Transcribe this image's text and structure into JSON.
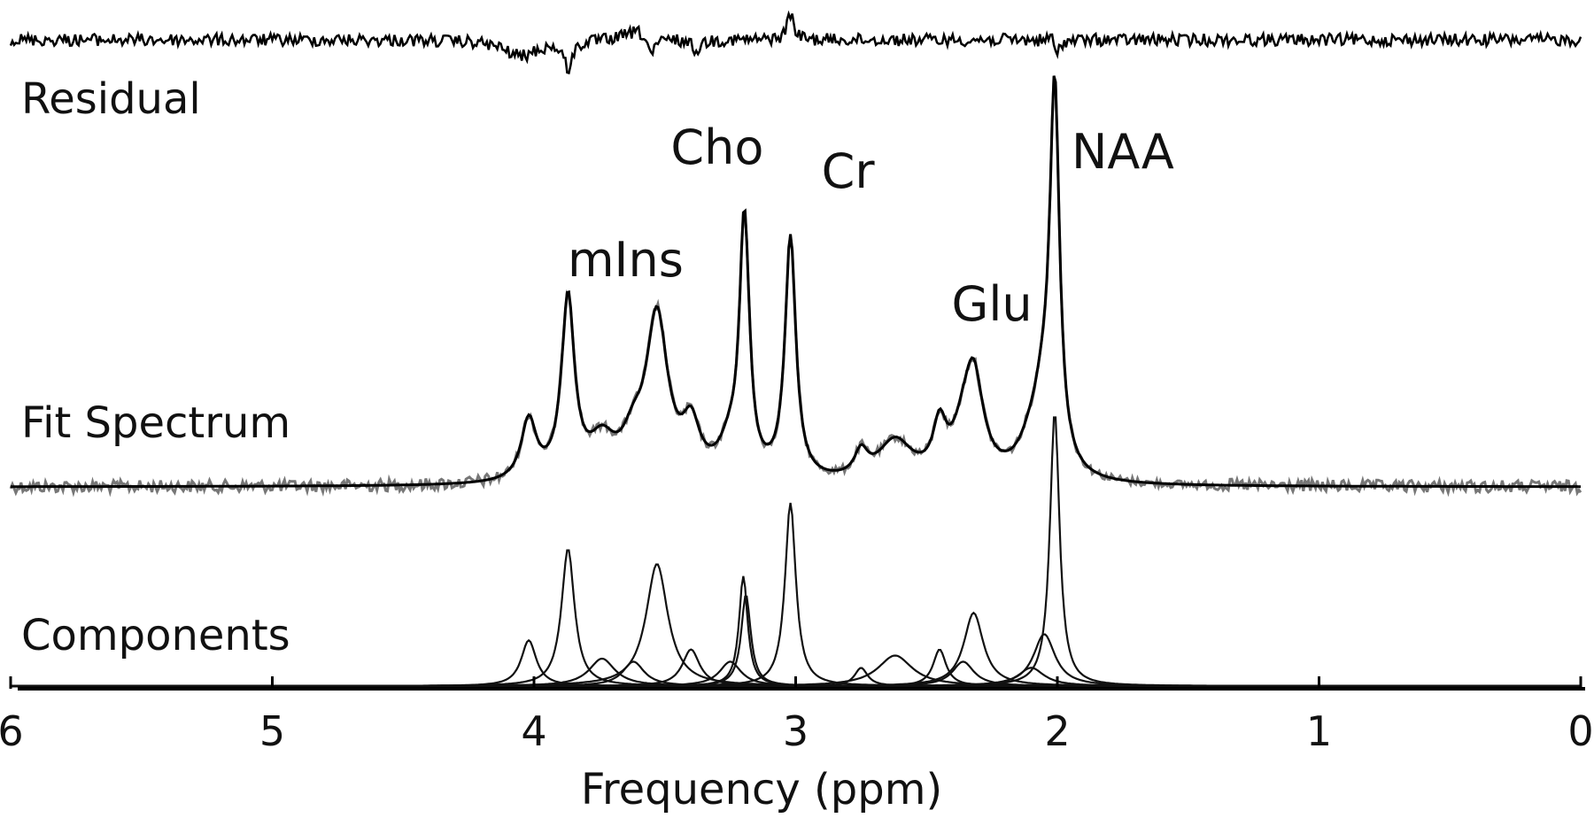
{
  "chart_data": {
    "type": "line",
    "title": "",
    "xlabel": "Frequency (ppm)",
    "ylabel": "",
    "xlim": [
      6,
      0
    ],
    "x_reversed": true,
    "grid": false,
    "legend": "none",
    "x_ticks": [
      {
        "value": 6,
        "label": "6"
      },
      {
        "value": 5,
        "label": "5"
      },
      {
        "value": 4,
        "label": "4"
      },
      {
        "value": 3,
        "label": "3"
      },
      {
        "value": 2,
        "label": "2"
      },
      {
        "value": 1,
        "label": "1"
      },
      {
        "value": 0,
        "label": "0"
      }
    ],
    "trace_labels": {
      "residual": "Residual",
      "fit": "Fit Spectrum",
      "components": "Components"
    },
    "peak_labels": [
      {
        "text": "mIns",
        "ppm": 3.65
      },
      {
        "text": "Cho",
        "ppm": 3.3
      },
      {
        "text": "Cr",
        "ppm": 2.8
      },
      {
        "text": "Glu",
        "ppm": 2.25
      },
      {
        "text": "NAA",
        "ppm": 1.75
      }
    ],
    "components": [
      {
        "ppm": 4.02,
        "amplitude": 0.15,
        "width": 0.035
      },
      {
        "ppm": 3.87,
        "amplitude": 0.45,
        "width": 0.03
      },
      {
        "ppm": 3.53,
        "amplitude": 0.4,
        "width": 0.05
      },
      {
        "ppm": 3.4,
        "amplitude": 0.12,
        "width": 0.04
      },
      {
        "ppm": 3.74,
        "amplitude": 0.09,
        "width": 0.06
      },
      {
        "ppm": 3.62,
        "amplitude": 0.08,
        "width": 0.05
      },
      {
        "ppm": 3.25,
        "amplitude": 0.08,
        "width": 0.05
      },
      {
        "ppm": 3.19,
        "amplitude": 0.3,
        "width": 0.022
      },
      {
        "ppm": 3.2,
        "amplitude": 0.36,
        "width": 0.02
      },
      {
        "ppm": 3.02,
        "amplitude": 0.6,
        "width": 0.025
      },
      {
        "ppm": 2.75,
        "amplitude": 0.06,
        "width": 0.03
      },
      {
        "ppm": 2.62,
        "amplitude": 0.1,
        "width": 0.08
      },
      {
        "ppm": 2.45,
        "amplitude": 0.12,
        "width": 0.03
      },
      {
        "ppm": 2.36,
        "amplitude": 0.08,
        "width": 0.05
      },
      {
        "ppm": 2.32,
        "amplitude": 0.24,
        "width": 0.045
      },
      {
        "ppm": 2.1,
        "amplitude": 0.06,
        "width": 0.06
      },
      {
        "ppm": 2.05,
        "amplitude": 0.17,
        "width": 0.05
      },
      {
        "ppm": 2.01,
        "amplitude": 0.9,
        "width": 0.022
      }
    ]
  }
}
